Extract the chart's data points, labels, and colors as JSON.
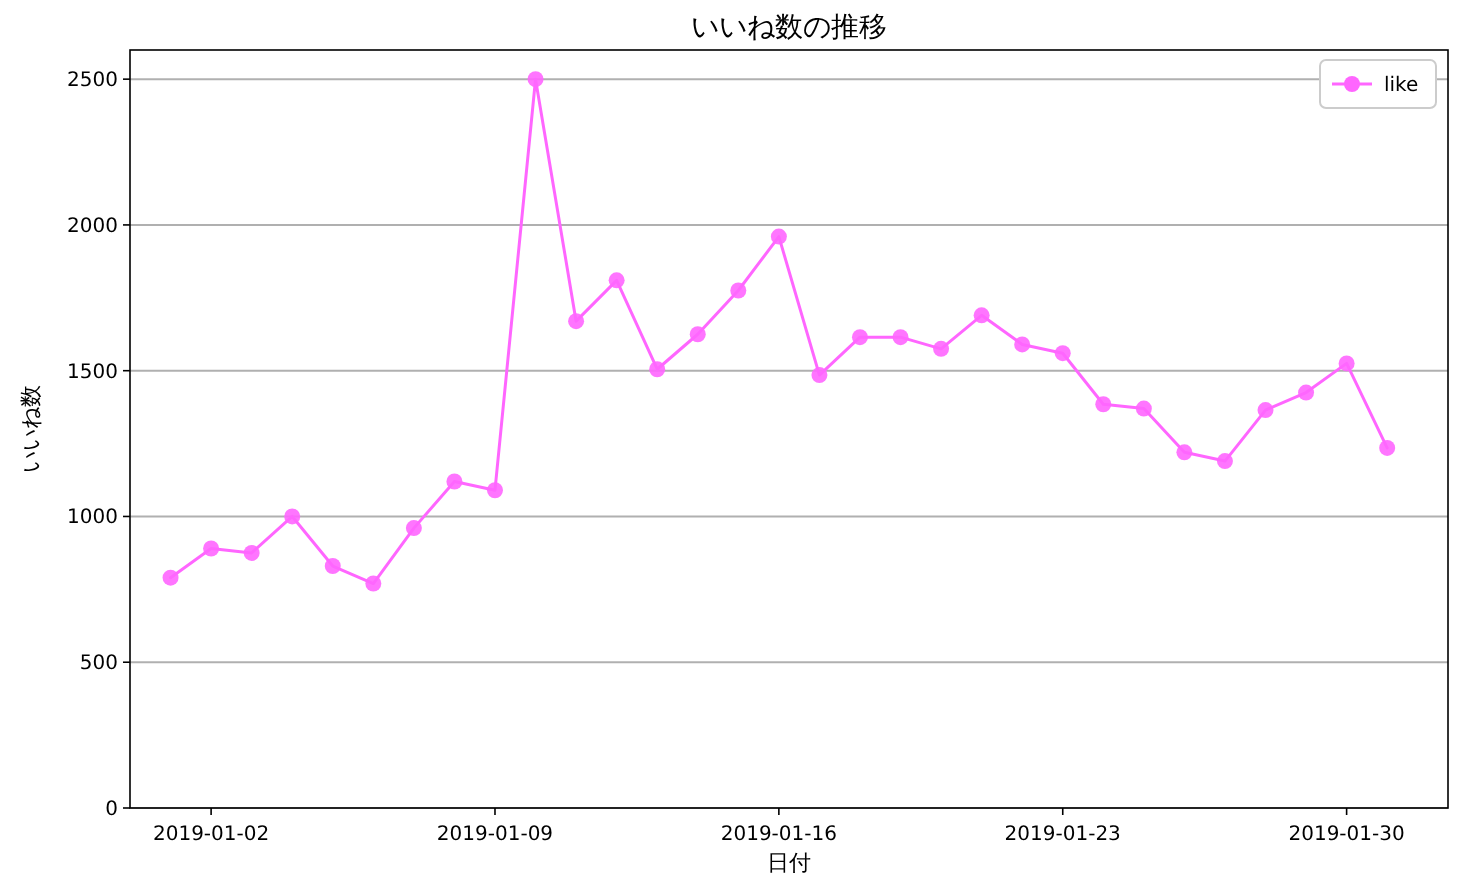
{
  "chart_data": {
    "type": "line",
    "title": "いいね数の推移",
    "xlabel": "日付",
    "ylabel": "いいね数",
    "x": [
      "2019-01-01",
      "2019-01-02",
      "2019-01-03",
      "2019-01-04",
      "2019-01-05",
      "2019-01-06",
      "2019-01-07",
      "2019-01-08",
      "2019-01-09",
      "2019-01-10",
      "2019-01-11",
      "2019-01-12",
      "2019-01-13",
      "2019-01-14",
      "2019-01-15",
      "2019-01-16",
      "2019-01-17",
      "2019-01-18",
      "2019-01-19",
      "2019-01-20",
      "2019-01-21",
      "2019-01-22",
      "2019-01-23",
      "2019-01-24",
      "2019-01-25",
      "2019-01-26",
      "2019-01-27",
      "2019-01-28",
      "2019-01-29",
      "2019-01-30",
      "2019-01-31"
    ],
    "series": [
      {
        "name": "like",
        "color": "#ff66ff",
        "values": [
          790,
          890,
          875,
          1000,
          830,
          770,
          960,
          1120,
          1090,
          2500,
          1670,
          1810,
          1505,
          1625,
          1775,
          1960,
          1485,
          1615,
          1615,
          1575,
          1690,
          1590,
          1560,
          1385,
          1370,
          1220,
          1190,
          1365,
          1425,
          1525,
          1235
        ]
      }
    ],
    "xlim": [
      "2018-12-31",
      "2019-02-01T12:00"
    ],
    "xticks": [
      "2019-01-02",
      "2019-01-09",
      "2019-01-16",
      "2019-01-23",
      "2019-01-30"
    ],
    "ylim": [
      0,
      2600
    ],
    "yticks": [
      0,
      500,
      1000,
      1500,
      2000,
      2500
    ],
    "grid": "y",
    "legend": "top right",
    "marker": "circle",
    "line_style": "solid"
  }
}
